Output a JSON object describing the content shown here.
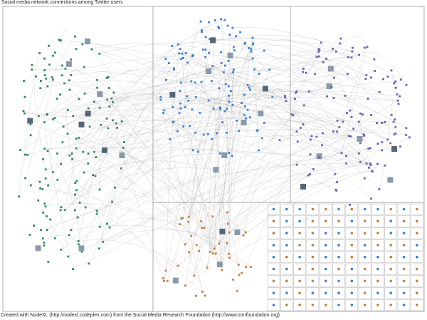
{
  "title": "Social media network connections among Twitter users",
  "footer": "Created with NodeXL (http://nodexl.codeplex.com) from the Social Media Research Foundation (http://www.smrfoundation.org)",
  "colors": {
    "background": "#ffffff",
    "border": "#8a8a8a",
    "edge": "#9a9a9a",
    "group_green": "#2e8b57",
    "group_blue": "#3a7fd5",
    "group_purple": "#6b5fb5",
    "group_misc": "#c08040"
  },
  "groups": [
    {
      "id": "G1",
      "color": "green"
    },
    {
      "id": "G2",
      "color": "blue"
    },
    {
      "id": "G3",
      "color": "purple"
    }
  ]
}
